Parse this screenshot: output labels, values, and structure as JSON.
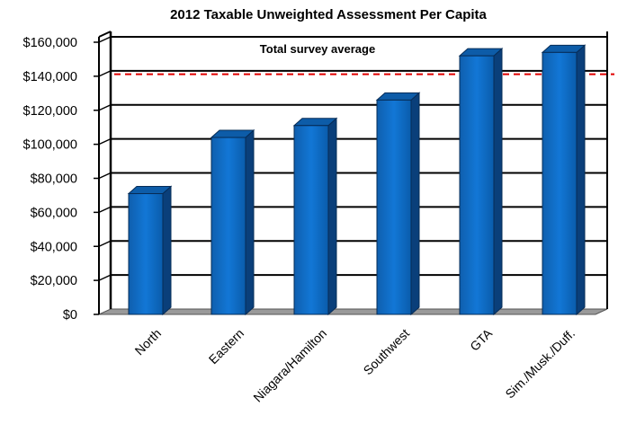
{
  "chart_data": {
    "type": "bar",
    "title": "2012 Taxable Unweighted Assessment Per Capita",
    "categories": [
      "North",
      "Eastern",
      "Niagara/Hamilton",
      "Southwest",
      "GTA",
      "Sim./Musk./Duff."
    ],
    "values": [
      71000,
      104000,
      111000,
      126000,
      152000,
      154000
    ],
    "ylim": [
      0,
      160000
    ],
    "yticks": [
      "$0",
      "$20,000",
      "$40,000",
      "$60,000",
      "$80,000",
      "$100,000",
      "$120,000",
      "$140,000",
      "$160,000"
    ],
    "reference_line": {
      "label": "Total survey average",
      "value": 138000,
      "color": "#e00000"
    },
    "bar_color": "#0a6cc4",
    "grid": true,
    "xlabel": "",
    "ylabel": ""
  }
}
